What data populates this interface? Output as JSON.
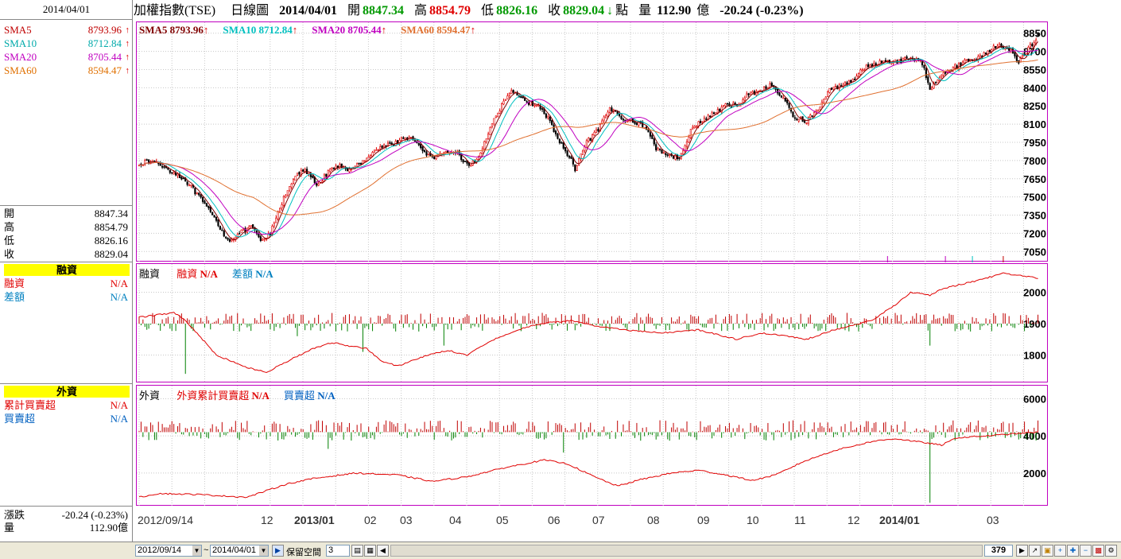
{
  "left_panel": {
    "date": "2014/04/01",
    "sma": [
      {
        "label": "SMA5",
        "value": "8793.96",
        "color": "#c00000"
      },
      {
        "label": "SMA10",
        "value": "8712.84",
        "color": "#00aaaa"
      },
      {
        "label": "SMA20",
        "value": "8705.44",
        "color": "#c000c0"
      },
      {
        "label": "SMA60",
        "value": "8594.47",
        "color": "#e07000"
      }
    ],
    "ohlc": [
      {
        "label": "開",
        "value": "8847.34"
      },
      {
        "label": "高",
        "value": "8854.79"
      },
      {
        "label": "低",
        "value": "8826.16"
      },
      {
        "label": "收",
        "value": "8829.04"
      }
    ],
    "margin_section": {
      "title": "融資",
      "rows": [
        {
          "label": "融資",
          "value": "N/A"
        },
        {
          "label": "差額",
          "value": "N/A"
        }
      ]
    },
    "foreign_section": {
      "title": "外資",
      "rows": [
        {
          "label": "累計買賣超",
          "value": "N/A"
        },
        {
          "label": "買賣超",
          "value": "N/A"
        }
      ]
    },
    "change": {
      "label": "漲跌",
      "value": "-20.24 (-0.23%)"
    },
    "volume": {
      "label": "量",
      "value": "112.90億"
    }
  },
  "header": {
    "title": "加權指數(TSE)",
    "chart_type": "日線圖",
    "date": "2014/04/01",
    "open_label": "開",
    "open": "8847.34",
    "high_label": "高",
    "high": "8854.79",
    "low_label": "低",
    "low": "8826.16",
    "close_label": "收",
    "close": "8829.04",
    "unit": "點",
    "volume_label": "量",
    "volume": "112.90",
    "volume_unit": "億",
    "change": "-20.24 (-0.23%)"
  },
  "panels": {
    "price_legend": [
      {
        "text": "SMA5 8793.96",
        "color": "#800000"
      },
      {
        "text": "SMA10 8712.84",
        "color": "#00c0c0"
      },
      {
        "text": "SMA20 8705.44",
        "color": "#c000c0"
      },
      {
        "text": "SMA60 8594.47",
        "color": "#e07030"
      }
    ],
    "margin_title": "融資",
    "margin_legend": [
      {
        "text": "融資",
        "value": "N/A",
        "color": "#e00000"
      },
      {
        "text": "差額",
        "value": "N/A",
        "color": "#0080c0"
      }
    ],
    "foreign_title": "外資",
    "foreign_legend": [
      {
        "text": "外資累計買賣超",
        "value": "N/A",
        "color": "#e00000"
      },
      {
        "text": "買賣超",
        "value": "N/A",
        "color": "#0060c0"
      }
    ]
  },
  "x_axis": {
    "labels": [
      "2012/09/14",
      "12",
      "2013/01",
      "02",
      "03",
      "04",
      "05",
      "06",
      "07",
      "08",
      "09",
      "10",
      "11",
      "12",
      "2014/01",
      "03"
    ]
  },
  "bottom_bar": {
    "start_date": "2012/09/14",
    "tilde": "~",
    "end_date": "2014/04/01",
    "reserve_label": "保留空間",
    "reserve_value": "3",
    "count": "379"
  },
  "chart_data": [
    {
      "type": "candlestick",
      "title": "加權指數(TSE) 日線圖",
      "y_ticks": [
        7050,
        7200,
        7350,
        7500,
        7650,
        7800,
        7950,
        8100,
        8250,
        8400,
        8550,
        8700,
        8850
      ],
      "ylim": [
        6960,
        8940
      ],
      "x_labels": [
        "2012/09/14",
        "12",
        "2013/01",
        "02",
        "03",
        "04",
        "05",
        "06",
        "07",
        "08",
        "09",
        "10",
        "11",
        "12",
        "2014/01",
        "03"
      ],
      "anchors_close": [
        [
          0,
          7780
        ],
        [
          8,
          7790
        ],
        [
          16,
          7720
        ],
        [
          24,
          7640
        ],
        [
          32,
          7480
        ],
        [
          40,
          7300
        ],
        [
          46,
          7140
        ],
        [
          52,
          7200
        ],
        [
          58,
          7250
        ],
        [
          64,
          7130
        ],
        [
          68,
          7200
        ],
        [
          74,
          7450
        ],
        [
          80,
          7660
        ],
        [
          86,
          7720
        ],
        [
          92,
          7600
        ],
        [
          98,
          7700
        ],
        [
          104,
          7760
        ],
        [
          110,
          7720
        ],
        [
          116,
          7800
        ],
        [
          122,
          7880
        ],
        [
          128,
          7930
        ],
        [
          134,
          7950
        ],
        [
          140,
          8000
        ],
        [
          146,
          7900
        ],
        [
          152,
          7820
        ],
        [
          158,
          7850
        ],
        [
          164,
          7880
        ],
        [
          170,
          7760
        ],
        [
          176,
          7820
        ],
        [
          182,
          8080
        ],
        [
          188,
          8250
        ],
        [
          194,
          8380
        ],
        [
          200,
          8290
        ],
        [
          206,
          8260
        ],
        [
          212,
          8150
        ],
        [
          218,
          7950
        ],
        [
          224,
          7800
        ],
        [
          226,
          7720
        ],
        [
          232,
          7950
        ],
        [
          238,
          8050
        ],
        [
          244,
          8230
        ],
        [
          250,
          8160
        ],
        [
          256,
          8120
        ],
        [
          262,
          8090
        ],
        [
          268,
          7900
        ],
        [
          274,
          7850
        ],
        [
          280,
          7820
        ],
        [
          286,
          8050
        ],
        [
          292,
          8130
        ],
        [
          298,
          8190
        ],
        [
          304,
          8250
        ],
        [
          310,
          8260
        ],
        [
          316,
          8350
        ],
        [
          322,
          8380
        ],
        [
          328,
          8420
        ],
        [
          334,
          8310
        ],
        [
          340,
          8150
        ],
        [
          346,
          8130
        ],
        [
          352,
          8220
        ],
        [
          358,
          8380
        ],
        [
          364,
          8420
        ],
        [
          370,
          8470
        ],
        [
          376,
          8560
        ],
        [
          382,
          8600
        ],
        [
          388,
          8620
        ],
        [
          394,
          8620
        ],
        [
          400,
          8650
        ],
        [
          406,
          8600
        ],
        [
          410,
          8400
        ],
        [
          416,
          8520
        ],
        [
          422,
          8560
        ],
        [
          428,
          8620
        ],
        [
          434,
          8640
        ],
        [
          440,
          8700
        ],
        [
          446,
          8760
        ],
        [
          452,
          8700
        ],
        [
          456,
          8620
        ],
        [
          462,
          8740
        ],
        [
          466,
          8829.04
        ]
      ]
    },
    {
      "type": "bar+line",
      "title": "融資",
      "y_ticks": [
        1800,
        1900,
        2000
      ],
      "ylim": [
        1710,
        2090
      ],
      "series": [
        {
          "name": "融資",
          "values": "N/A"
        },
        {
          "name": "差額",
          "values": "N/A"
        }
      ]
    },
    {
      "type": "bar+line",
      "title": "外資",
      "y_ticks": [
        2000,
        4000,
        6000
      ],
      "ylim": [
        200,
        6700
      ],
      "series": [
        {
          "name": "外資累計買賣超",
          "values": "N/A"
        },
        {
          "name": "買賣超",
          "values": "N/A"
        }
      ]
    }
  ],
  "colors": {
    "up": "#e00000",
    "down": "#008000",
    "border": "#c000c0",
    "yellow": "#ffff00"
  }
}
